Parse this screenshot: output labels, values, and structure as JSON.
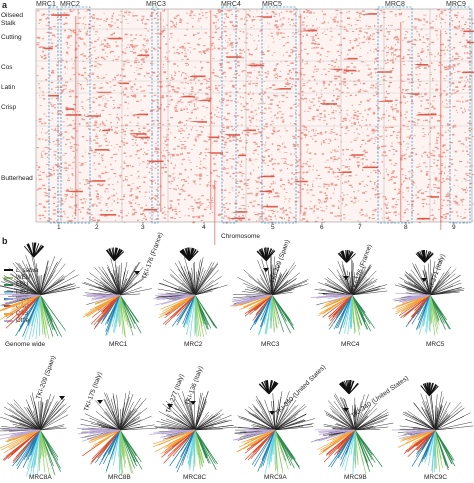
{
  "panel_a": {
    "letter": "a",
    "regions": [
      "MRC1",
      "MRC2",
      "MRC3",
      "MRC4",
      "MRC5",
      "MRC8",
      "MRC9"
    ],
    "groups": [
      "Oilseed",
      "Stalk",
      "Cutting",
      "Cos",
      "Latin",
      "Crisp",
      "Butterhead"
    ],
    "chromosomes": [
      "1",
      "2",
      "3",
      "4",
      "5",
      "6",
      "7",
      "8",
      "9"
    ],
    "axis_label": "Chromosome"
  },
  "panel_b": {
    "letter": "b",
    "legend": [
      {
        "label": "L. sativa",
        "color": "#111111"
      },
      {
        "label": "WEU",
        "color": "#8fd06a"
      },
      {
        "label": "EEU",
        "color": "#2d8b4e"
      },
      {
        "label": "EEU",
        "color": "#6dd5e0"
      },
      {
        "label": "WAS",
        "color": "#1f7fb4"
      },
      {
        "label": "CAU",
        "color": "#d84a2c"
      },
      {
        "label": "CAS",
        "color": "#f2a33a"
      },
      {
        "label": "Other",
        "color": "#b9a6d6"
      }
    ],
    "tree_labels": [
      "Genome wide",
      "MRC1",
      "MRC2",
      "MRC3",
      "MRC4",
      "MRC5",
      "MRC8A",
      "MRC8B",
      "MRC8C",
      "MRC9A",
      "MRC9B",
      "MRC9C"
    ],
    "annotations": [
      "TKI-176 (France)",
      "TKI-209 (Spain)",
      "TKI-176 (France)",
      "TKI-271 (Italy)",
      "TKI-209 (Spain)",
      "TKI-175 (Italy)",
      "TKI-277 (Italy)",
      "TKI-136 (Italy)",
      "TKI-340 (United States)",
      "TKI-340 (United States)"
    ],
    "colors": {
      "accent_red": "#e0483a",
      "highlight_blue": "#3a9ad9"
    }
  }
}
